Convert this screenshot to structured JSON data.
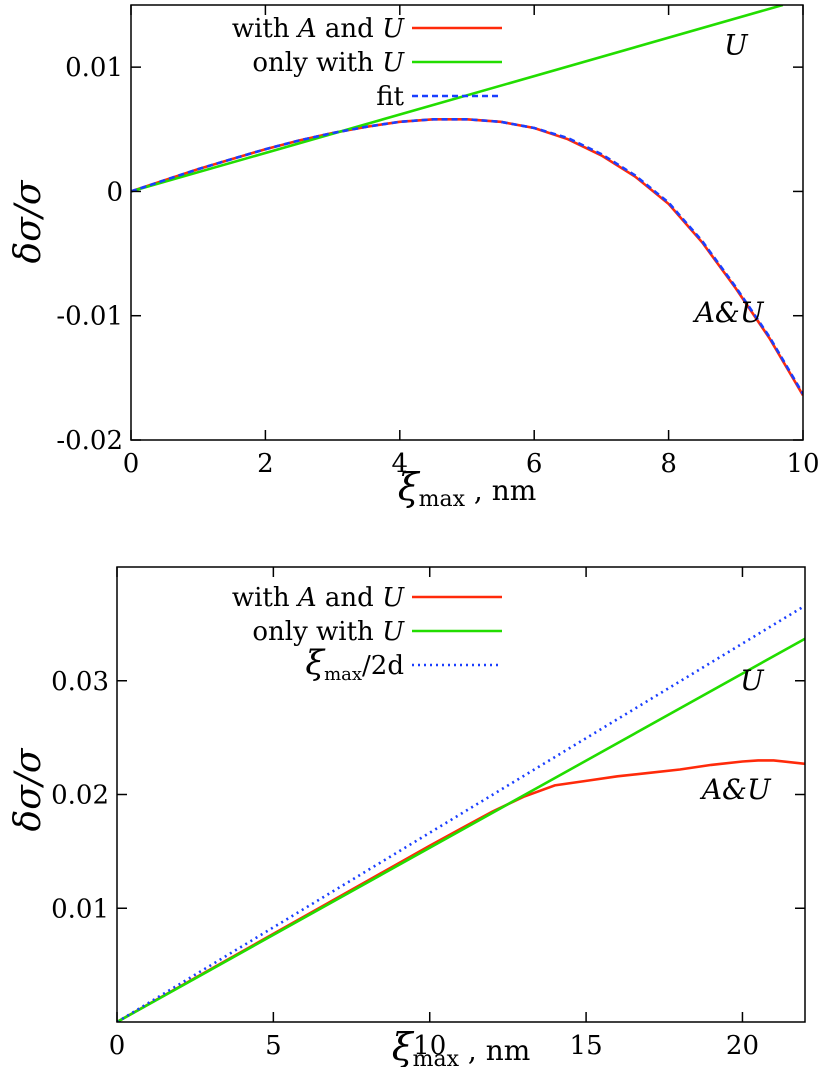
{
  "chart_data": [
    {
      "type": "line",
      "xlabel": "ξmax , nm",
      "xlabel_parts": {
        "symbol": "ξ",
        "subscript": "max",
        "unit": ", nm"
      },
      "ylabel": "δσ/σ",
      "xlim": [
        0,
        10
      ],
      "ylim": [
        -0.02,
        0.015
      ],
      "xticks": [
        0,
        2,
        4,
        6,
        8,
        10
      ],
      "xtick_labels": [
        "0",
        "2",
        "4",
        "6",
        "8",
        "10"
      ],
      "yticks": [
        -0.02,
        -0.01,
        0,
        0.01
      ],
      "ytick_labels": [
        "-0.02",
        "-0.01",
        "0",
        "0.01"
      ],
      "grid": false,
      "legend_position": "top-left",
      "series": [
        {
          "name": "with A and U",
          "name_parts": [
            "with ",
            "A",
            " and ",
            "U"
          ],
          "color": "#ff2a0a",
          "style": "solid",
          "x": [
            0,
            0.5,
            1,
            1.5,
            2,
            2.5,
            3,
            3.5,
            4,
            4.5,
            5,
            5.5,
            6,
            6.5,
            7,
            7.5,
            8,
            8.5,
            9,
            9.5,
            10
          ],
          "y": [
            0,
            0.0009,
            0.0018,
            0.0026,
            0.0034,
            0.0041,
            0.0047,
            0.0052,
            0.0056,
            0.0058,
            0.0058,
            0.0056,
            0.0051,
            0.0042,
            0.0029,
            0.0012,
            -0.001,
            -0.0041,
            -0.0078,
            -0.0118,
            -0.0164
          ]
        },
        {
          "name": "only with U",
          "name_parts": [
            "only with ",
            "U"
          ],
          "color": "#22dd00",
          "style": "solid",
          "x": [
            0,
            9.7
          ],
          "y": [
            0,
            0.015
          ]
        },
        {
          "name": "fit",
          "name_parts": [
            "fit"
          ],
          "color": "#1a3fff",
          "style": "dashed",
          "x": [
            0,
            0.5,
            1,
            1.5,
            2,
            2.5,
            3,
            3.5,
            4,
            4.5,
            5,
            5.5,
            6,
            6.5,
            7,
            7.5,
            8,
            8.5,
            9,
            9.5,
            10
          ],
          "y": [
            0,
            0.0009,
            0.0018,
            0.0026,
            0.0034,
            0.0041,
            0.0047,
            0.0052,
            0.0056,
            0.0058,
            0.0058,
            0.0056,
            0.0051,
            0.0043,
            0.003,
            0.0013,
            -0.0009,
            -0.004,
            -0.0077,
            -0.0117,
            -0.0163
          ]
        }
      ],
      "annotations": [
        {
          "text": "U",
          "x": 9.0,
          "y": 0.011
        },
        {
          "text": "A&U",
          "x": 8.9,
          "y": -0.0105
        }
      ]
    },
    {
      "type": "line",
      "xlabel": "ξmax , nm",
      "xlabel_parts": {
        "symbol": "ξ",
        "subscript": "max",
        "unit": ", nm"
      },
      "ylabel": "δσ/σ",
      "xlim": [
        0,
        22
      ],
      "ylim": [
        0,
        0.04
      ],
      "xticks": [
        0,
        5,
        10,
        15,
        20
      ],
      "xtick_labels": [
        "0",
        "5",
        "10",
        "15",
        "20"
      ],
      "yticks": [
        0.01,
        0.02,
        0.03
      ],
      "ytick_labels": [
        "0.01",
        "0.02",
        "0.03"
      ],
      "grid": false,
      "legend_position": "top-left",
      "series": [
        {
          "name": "with A and U",
          "name_parts": [
            "with ",
            "A",
            " and ",
            "U"
          ],
          "color": "#ff2a0a",
          "style": "solid",
          "x": [
            0,
            2,
            4,
            6,
            8,
            10,
            11,
            12,
            13,
            14,
            15,
            16,
            17,
            18,
            19,
            20,
            20.5,
            21,
            22
          ],
          "y": [
            0,
            0.0031,
            0.0062,
            0.0093,
            0.0124,
            0.0155,
            0.017,
            0.0185,
            0.0198,
            0.0208,
            0.0212,
            0.0216,
            0.0219,
            0.0222,
            0.0226,
            0.0229,
            0.023,
            0.023,
            0.0227
          ]
        },
        {
          "name": "only with U",
          "name_parts": [
            "only with ",
            "U"
          ],
          "color": "#22dd00",
          "style": "solid",
          "x": [
            0,
            22
          ],
          "y": [
            0,
            0.0337
          ]
        },
        {
          "name": "ξmax/2d",
          "name_parts": {
            "symbol": "ξ",
            "subscript": "max",
            "rest": "/2d"
          },
          "color": "#1a3fff",
          "style": "dotted",
          "x": [
            0,
            22
          ],
          "y": [
            0,
            0.0366
          ]
        }
      ],
      "annotations": [
        {
          "text": "U",
          "x": 20.3,
          "y": 0.0292
        },
        {
          "text": "A&U",
          "x": 19.8,
          "y": 0.0196
        }
      ]
    }
  ]
}
